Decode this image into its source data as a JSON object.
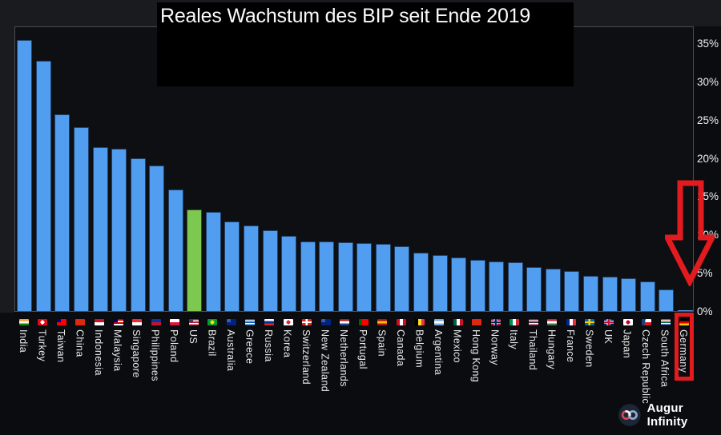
{
  "chart_data": {
    "type": "bar",
    "title": "Reales Wachstum des BIP seit Ende 2019",
    "xlabel": "",
    "ylabel": "",
    "ylim": [
      0,
      37.3
    ],
    "yticks": [
      "0%",
      "5%",
      "10%",
      "15%",
      "20%",
      "25%",
      "30%",
      "35%"
    ],
    "grid": false,
    "legend": false,
    "bar_color": "#519ef0",
    "highlight_color": "#7cc850",
    "annotation_color": "#e31b1f",
    "highlight_label": "US",
    "annotated_label": "Germany",
    "series": [
      {
        "label": "India",
        "value": 35.4,
        "flag": {
          "type": "h",
          "colors": [
            "#ff9933",
            "#f7f7f7",
            "#138808"
          ]
        }
      },
      {
        "label": "Turkey",
        "value": 32.7,
        "flag": {
          "type": "dot",
          "colors": [
            "#e30a17",
            "#ffffff"
          ]
        }
      },
      {
        "label": "Taiwan",
        "value": 25.7,
        "flag": {
          "type": "corner",
          "colors": [
            "#fe0000"
          ],
          "corner": "#000095"
        }
      },
      {
        "label": "China",
        "value": 24.0,
        "flag": {
          "type": "solid",
          "colors": [
            "#de2910"
          ]
        }
      },
      {
        "label": "Indonesia",
        "value": 21.4,
        "flag": {
          "type": "h",
          "colors": [
            "#ce1126",
            "#ffffff"
          ]
        }
      },
      {
        "label": "Malaysia",
        "value": 21.2,
        "flag": {
          "type": "corner",
          "colors": [
            "#cc0001",
            "#ffffff",
            "#cc0001",
            "#ffffff"
          ],
          "corner": "#010066"
        }
      },
      {
        "label": "Singapore",
        "value": 20.0,
        "flag": {
          "type": "h",
          "colors": [
            "#ed2939",
            "#ffffff"
          ]
        }
      },
      {
        "label": "Philippines",
        "value": 19.0,
        "flag": {
          "type": "h",
          "colors": [
            "#0038a8",
            "#ce1126"
          ]
        }
      },
      {
        "label": "Poland",
        "value": 15.9,
        "flag": {
          "type": "h",
          "colors": [
            "#ffffff",
            "#dc143c"
          ]
        }
      },
      {
        "label": "US",
        "value": 13.3,
        "flag": {
          "type": "corner",
          "colors": [
            "#b22234",
            "#ffffff",
            "#b22234",
            "#ffffff",
            "#b22234"
          ],
          "corner": "#3c3b6e"
        },
        "highlight": true
      },
      {
        "label": "Brazil",
        "value": 13.0,
        "flag": {
          "type": "dot",
          "colors": [
            "#009b3a",
            "#fedf00"
          ]
        }
      },
      {
        "label": "Australia",
        "value": 11.7,
        "flag": {
          "type": "corner",
          "colors": [
            "#00247d"
          ],
          "corner": "#3a57b5"
        }
      },
      {
        "label": "Greece",
        "value": 11.2,
        "flag": {
          "type": "h",
          "colors": [
            "#0d5eaf",
            "#ffffff",
            "#0d5eaf",
            "#ffffff",
            "#0d5eaf"
          ]
        }
      },
      {
        "label": "Russia",
        "value": 10.6,
        "flag": {
          "type": "h",
          "colors": [
            "#ffffff",
            "#0033a0",
            "#da291c"
          ]
        }
      },
      {
        "label": "Korea",
        "value": 9.8,
        "flag": {
          "type": "dot",
          "colors": [
            "#ffffff",
            "#cd2e3a"
          ]
        }
      },
      {
        "label": "Switzerland",
        "value": 9.1,
        "flag": {
          "type": "cross",
          "colors": [
            "#d52b1e",
            "#ffffff"
          ]
        }
      },
      {
        "label": "New Zealand",
        "value": 9.1,
        "flag": {
          "type": "corner",
          "colors": [
            "#00247d"
          ],
          "corner": "#3a57b5"
        }
      },
      {
        "label": "Netherlands",
        "value": 9.0,
        "flag": {
          "type": "h",
          "colors": [
            "#ae1c28",
            "#ffffff",
            "#21468b"
          ]
        }
      },
      {
        "label": "Portugal",
        "value": 8.9,
        "flag": {
          "type": "v",
          "colors": [
            "#006600",
            "#ff0000",
            "#ff0000"
          ]
        }
      },
      {
        "label": "Spain",
        "value": 8.8,
        "flag": {
          "type": "h",
          "colors": [
            "#aa151b",
            "#f1bf00",
            "#aa151b"
          ]
        }
      },
      {
        "label": "Canada",
        "value": 8.5,
        "flag": {
          "type": "v",
          "colors": [
            "#d80621",
            "#ffffff",
            "#d80621"
          ]
        }
      },
      {
        "label": "Belgium",
        "value": 7.6,
        "flag": {
          "type": "v",
          "colors": [
            "#000000",
            "#fdda24",
            "#ef3340"
          ]
        }
      },
      {
        "label": "Argentina",
        "value": 7.3,
        "flag": {
          "type": "h",
          "colors": [
            "#74acdf",
            "#ffffff",
            "#74acdf"
          ]
        }
      },
      {
        "label": "Mexico",
        "value": 7.0,
        "flag": {
          "type": "v",
          "colors": [
            "#006341",
            "#ffffff",
            "#ce1126"
          ]
        }
      },
      {
        "label": "Hong Kong",
        "value": 6.7,
        "flag": {
          "type": "solid",
          "colors": [
            "#de2910"
          ]
        }
      },
      {
        "label": "Norway",
        "value": 6.5,
        "flag": {
          "type": "cross",
          "colors": [
            "#ba0c2f",
            "#00205b",
            "#ffffff"
          ]
        }
      },
      {
        "label": "Italy",
        "value": 6.4,
        "flag": {
          "type": "v",
          "colors": [
            "#009246",
            "#ffffff",
            "#ce2b37"
          ]
        }
      },
      {
        "label": "Thailand",
        "value": 5.7,
        "flag": {
          "type": "h",
          "colors": [
            "#a51931",
            "#f4f5f8",
            "#2d2a4a",
            "#f4f5f8",
            "#a51931"
          ]
        }
      },
      {
        "label": "Hungary",
        "value": 5.5,
        "flag": {
          "type": "h",
          "colors": [
            "#ce2939",
            "#ffffff",
            "#477050"
          ]
        }
      },
      {
        "label": "France",
        "value": 5.2,
        "flag": {
          "type": "v",
          "colors": [
            "#002395",
            "#ffffff",
            "#ed2939"
          ]
        }
      },
      {
        "label": "Sweden",
        "value": 4.6,
        "flag": {
          "type": "cross",
          "colors": [
            "#006aa7",
            "#fecc02"
          ]
        }
      },
      {
        "label": "UK",
        "value": 4.5,
        "flag": {
          "type": "cross",
          "colors": [
            "#012169",
            "#c8102e",
            "#ffffff"
          ]
        }
      },
      {
        "label": "Japan",
        "value": 4.3,
        "flag": {
          "type": "dot",
          "colors": [
            "#ffffff",
            "#bc002d"
          ]
        }
      },
      {
        "label": "Czech Republic",
        "value": 3.9,
        "flag": {
          "type": "tri",
          "colors": [
            "#ffffff",
            "#d7141a"
          ],
          "tri": "#11457e"
        }
      },
      {
        "label": "South Africa",
        "value": 2.8,
        "flag": {
          "type": "h",
          "colors": [
            "#e03c31",
            "#ffffff",
            "#007749",
            "#ffffff",
            "#001489"
          ]
        }
      },
      {
        "label": "Germany",
        "value": 0.1,
        "flag": {
          "type": "h",
          "colors": [
            "#000000",
            "#dd0000",
            "#ffce00"
          ]
        },
        "annotated": true
      }
    ]
  },
  "redaction_box": true,
  "logo": {
    "text": "Augur Infinity",
    "icon": "infinity-icon"
  }
}
